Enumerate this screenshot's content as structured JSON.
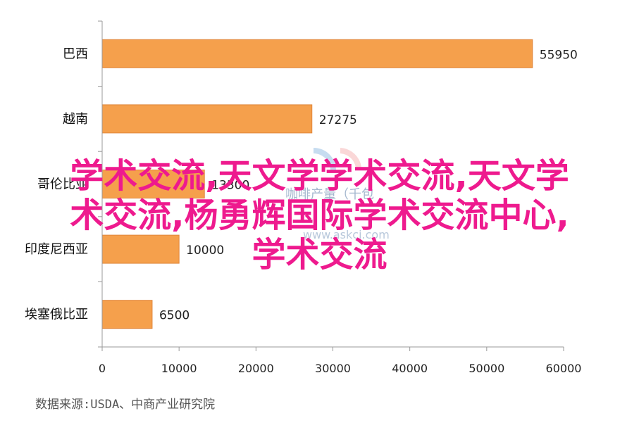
{
  "chart_data": {
    "type": "bar",
    "orientation": "horizontal",
    "categories": [
      "巴西",
      "越南",
      "哥伦比亚",
      "印度尼西亚",
      "埃塞俄比亚"
    ],
    "values": [
      55950,
      27275,
      13300,
      10000,
      6500
    ],
    "value_labels": [
      "55950",
      "27275",
      "13300",
      "10000",
      "6500"
    ],
    "xlim": [
      0,
      60000
    ],
    "xticks": [
      0,
      10000,
      20000,
      30000,
      40000,
      50000,
      60000
    ],
    "xtick_labels": [
      "0",
      "10000",
      "20000",
      "30000",
      "40000",
      "50000",
      "60000"
    ],
    "bar_color": "#f5a04c",
    "bar_edge_color": "#e0853a",
    "grid": false,
    "legend": "none"
  },
  "source_note": "数据来源:USDA、中商产业研究院",
  "watermark": {
    "text": "咖啡产量（千包",
    "url": "www.askci.com",
    "logo_colors": [
      "#5b9bd5",
      "#f4a6a6"
    ]
  },
  "overlay_text": {
    "line1": "学术交流,天文学学术交流,天文学",
    "line2": "术交流,杨勇辉国际学术交流中心,",
    "line3": "学术交流",
    "color": "#ee1a8e"
  }
}
